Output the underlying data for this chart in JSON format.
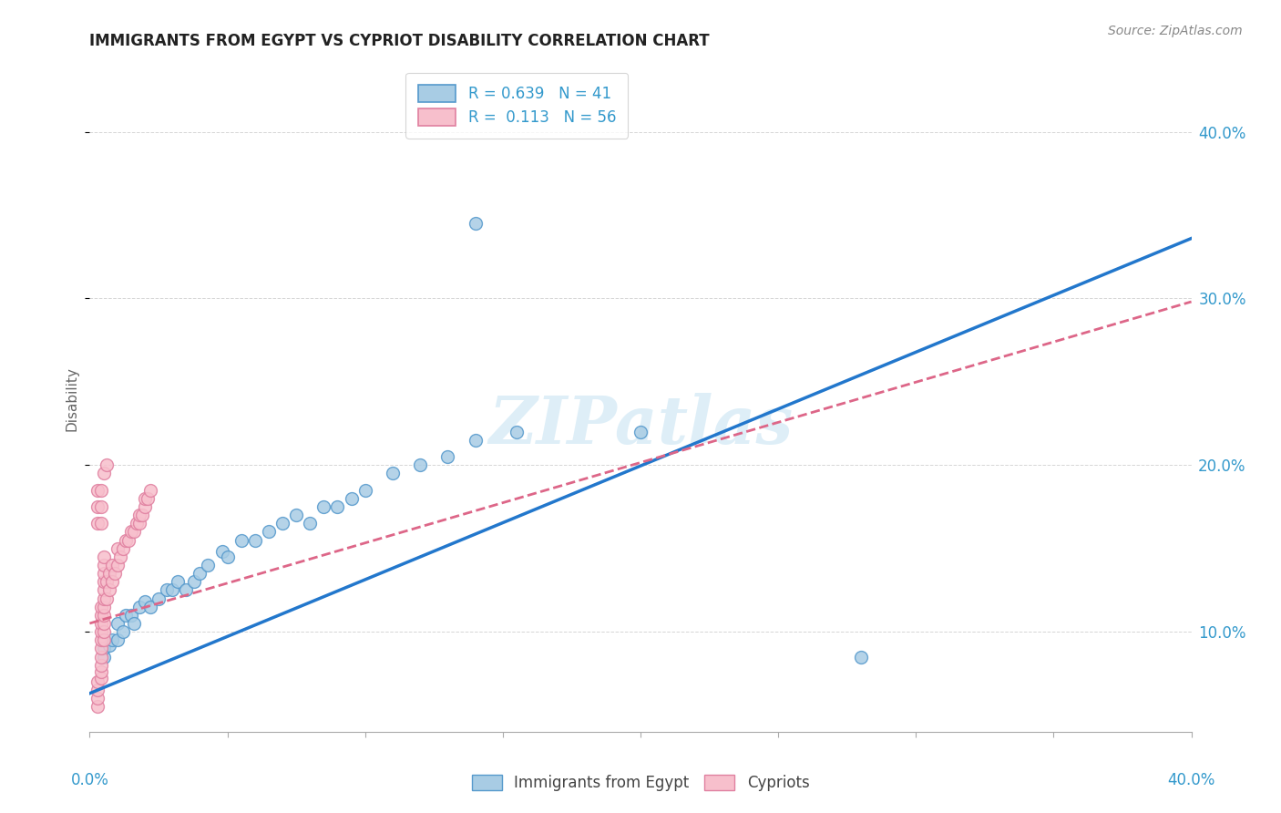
{
  "title": "IMMIGRANTS FROM EGYPT VS CYPRIOT DISABILITY CORRELATION CHART",
  "source": "Source: ZipAtlas.com",
  "ylabel": "Disability",
  "xlim": [
    0.0,
    0.4
  ],
  "ylim": [
    0.04,
    0.44
  ],
  "ytick_values": [
    0.1,
    0.2,
    0.3,
    0.4
  ],
  "blue_R": 0.639,
  "blue_N": 41,
  "pink_R": 0.113,
  "pink_N": 56,
  "blue_color": "#a8cce4",
  "pink_color": "#f7bfcc",
  "blue_edge_color": "#5599cc",
  "pink_edge_color": "#e080a0",
  "blue_line_color": "#2277cc",
  "pink_line_color": "#dd6688",
  "right_axis_color": "#3399cc",
  "watermark_color": "#d0e8f5",
  "watermark": "ZIPatlas",
  "blue_line_x0": 0.0,
  "blue_line_y0": 0.063,
  "blue_line_x1": 0.4,
  "blue_line_y1": 0.336,
  "pink_line_x0": 0.0,
  "pink_line_y0": 0.105,
  "pink_line_x1": 0.4,
  "pink_line_y1": 0.298,
  "blue_scatter_x": [
    0.005,
    0.005,
    0.007,
    0.008,
    0.01,
    0.01,
    0.012,
    0.013,
    0.015,
    0.016,
    0.018,
    0.02,
    0.022,
    0.025,
    0.028,
    0.03,
    0.032,
    0.035,
    0.038,
    0.04,
    0.043,
    0.048,
    0.05,
    0.055,
    0.06,
    0.065,
    0.07,
    0.075,
    0.08,
    0.085,
    0.09,
    0.095,
    0.1,
    0.11,
    0.12,
    0.13,
    0.14,
    0.155,
    0.2,
    0.28,
    0.14
  ],
  "blue_scatter_y": [
    0.085,
    0.09,
    0.092,
    0.095,
    0.095,
    0.105,
    0.1,
    0.11,
    0.11,
    0.105,
    0.115,
    0.118,
    0.115,
    0.12,
    0.125,
    0.125,
    0.13,
    0.125,
    0.13,
    0.135,
    0.14,
    0.148,
    0.145,
    0.155,
    0.155,
    0.16,
    0.165,
    0.17,
    0.165,
    0.175,
    0.175,
    0.18,
    0.185,
    0.195,
    0.2,
    0.205,
    0.215,
    0.22,
    0.22,
    0.085,
    0.345
  ],
  "pink_scatter_x": [
    0.003,
    0.003,
    0.003,
    0.003,
    0.004,
    0.004,
    0.004,
    0.004,
    0.004,
    0.004,
    0.004,
    0.004,
    0.004,
    0.004,
    0.005,
    0.005,
    0.005,
    0.005,
    0.005,
    0.005,
    0.005,
    0.005,
    0.005,
    0.005,
    0.005,
    0.006,
    0.006,
    0.007,
    0.007,
    0.008,
    0.008,
    0.009,
    0.01,
    0.01,
    0.011,
    0.012,
    0.013,
    0.014,
    0.015,
    0.016,
    0.017,
    0.018,
    0.018,
    0.019,
    0.02,
    0.02,
    0.021,
    0.022,
    0.005,
    0.006,
    0.003,
    0.003,
    0.003,
    0.004,
    0.004,
    0.004
  ],
  "pink_scatter_y": [
    0.055,
    0.06,
    0.065,
    0.07,
    0.072,
    0.076,
    0.08,
    0.085,
    0.09,
    0.095,
    0.1,
    0.105,
    0.11,
    0.115,
    0.095,
    0.1,
    0.105,
    0.11,
    0.115,
    0.12,
    0.125,
    0.13,
    0.135,
    0.14,
    0.145,
    0.12,
    0.13,
    0.125,
    0.135,
    0.13,
    0.14,
    0.135,
    0.14,
    0.15,
    0.145,
    0.15,
    0.155,
    0.155,
    0.16,
    0.16,
    0.165,
    0.165,
    0.17,
    0.17,
    0.175,
    0.18,
    0.18,
    0.185,
    0.195,
    0.2,
    0.165,
    0.175,
    0.185,
    0.165,
    0.175,
    0.185
  ]
}
